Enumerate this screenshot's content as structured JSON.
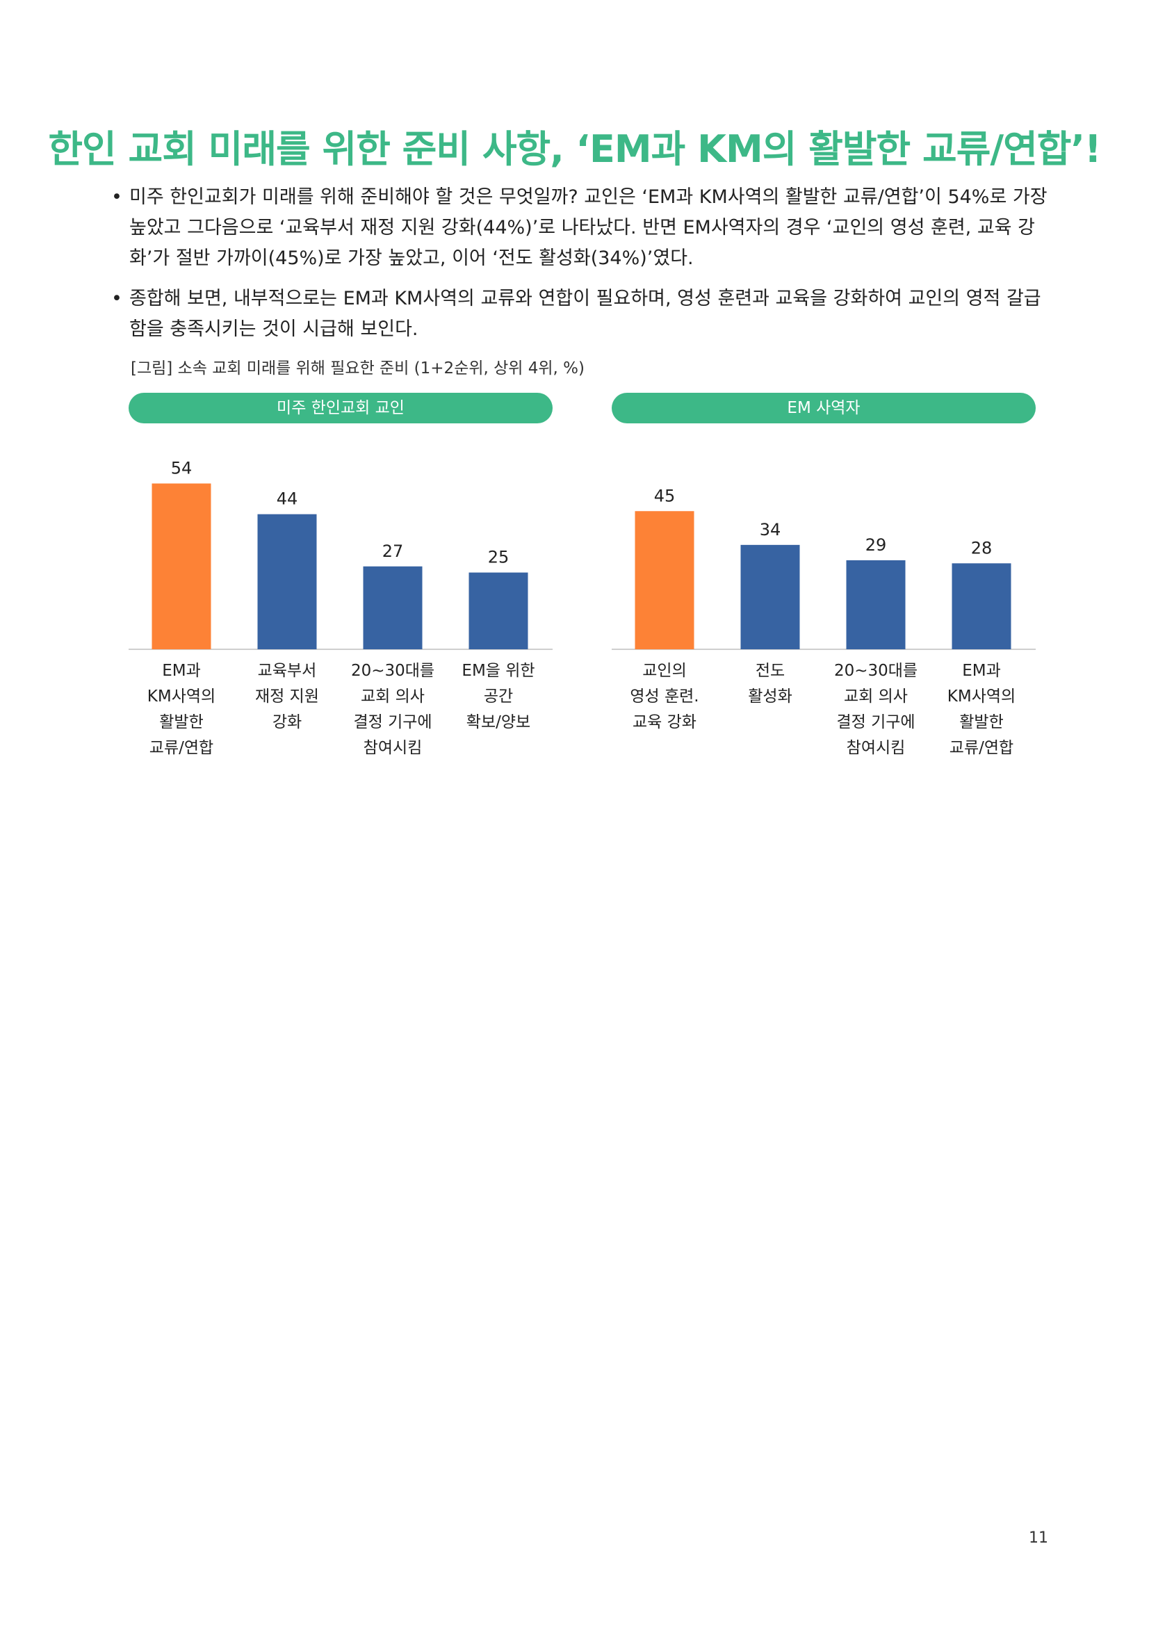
{
  "title": "한인 교회 미래를 위한 준비 사항, ‘EM과 KM의 활발한 교류/연합’!",
  "bullets": [
    "미주 한인교회가 미래를 위해 준비해야 할 것은 무엇일까? 교인은 ‘EM과 KM사역의 활발한 교류/연합’이 54%로 가장 높았고 그다음으로 ‘교육부서 재정 지원 강화(44%)’로 나타났다. 반면 EM사역자의 경우 ‘교인의 영성 훈련, 교육 강화’가 절반 가까이(45%)로 가장 높았고, 이어 ‘전도 활성화(34%)’였다.",
    "종합해 보면, 내부적으로는 EM과 KM사역의 교류와 연합이 필요하며, 영성 훈련과 교육을 강화하여 교인의 영적 갈급함을 충족시키는 것이 시급해 보인다."
  ],
  "bullet_symbol": "•",
  "caption": "[그림] 소속 교회 미래를 위해 필요한 준비 (1+2순위, 상위 4위, %)",
  "colors": {
    "accent": "#3db887",
    "highlight": "#fd8236",
    "bar": "#3763a2",
    "axis": "#cfcfcf"
  },
  "chart_data": [
    {
      "type": "bar",
      "title": "미주 한인교회 교인",
      "categories": [
        [
          "EM과",
          "KM사역의",
          "활발한",
          "교류/연합"
        ],
        [
          "교육부서",
          "재정 지원",
          "강화"
        ],
        [
          "20~30대를",
          "교회 의사",
          "결정 기구에",
          "참여시킴"
        ],
        [
          "EM을 위한",
          "공간",
          "확보/양보"
        ]
      ],
      "values": [
        54,
        44,
        27,
        25
      ],
      "highlight_index": 0,
      "ylim": [
        0,
        60
      ]
    },
    {
      "type": "bar",
      "title": "EM 사역자",
      "categories": [
        [
          "교인의",
          "영성 훈련.",
          "교육 강화"
        ],
        [
          "전도",
          "활성화"
        ],
        [
          "20~30대를",
          "교회 의사",
          "결정 기구에",
          "참여시킴"
        ],
        [
          "EM과",
          "KM사역의",
          "활발한",
          "교류/연합"
        ]
      ],
      "values": [
        45,
        34,
        29,
        28
      ],
      "highlight_index": 0,
      "ylim": [
        0,
        60
      ]
    }
  ],
  "page_number": "11"
}
